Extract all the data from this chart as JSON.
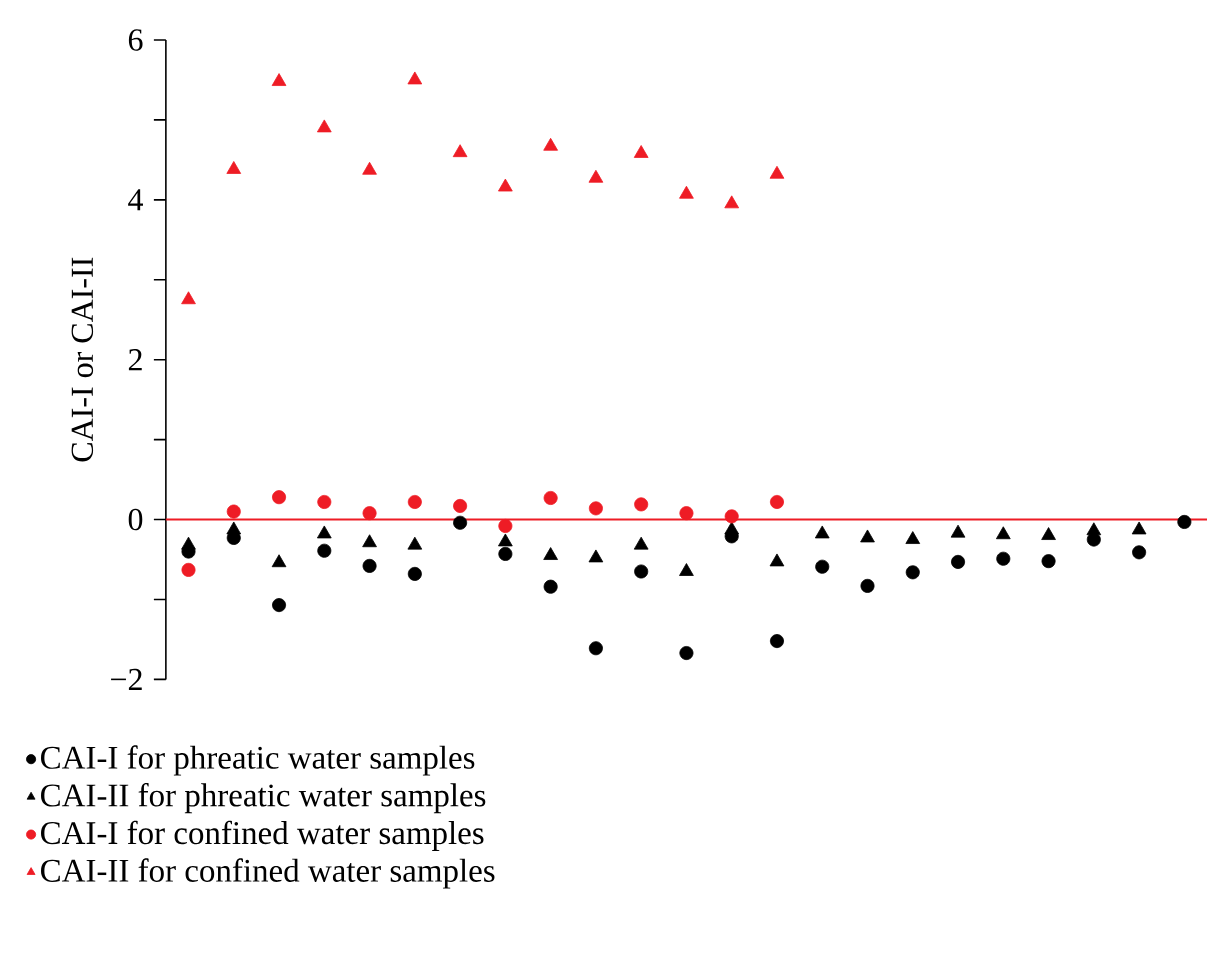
{
  "chart_data": {
    "type": "scatter",
    "ylabel": "CAI-I or CAI-II",
    "categories": [
      null,
      null,
      null,
      null,
      null,
      null,
      null,
      null,
      null,
      null,
      null,
      null,
      null,
      null,
      null,
      null,
      null,
      null,
      null,
      null,
      null,
      null,
      null
    ],
    "ylim": [
      -2,
      6
    ],
    "yticks": [
      {
        "value": -2,
        "label": "−2"
      },
      {
        "value": -1,
        "label": null
      },
      0,
      {
        "value": 1,
        "label": null
      },
      2,
      {
        "value": 3,
        "label": null
      },
      4,
      {
        "value": 5,
        "label": null
      },
      6
    ],
    "ref_lines": [
      {
        "axis": "y",
        "value": 0,
        "color": "#ee1c25"
      }
    ],
    "legend": "bottom",
    "grid": false,
    "series": [
      {
        "name": "CAI-I for phreatic water samples",
        "color": "#000000",
        "marker": "circle",
        "values": [
          -0.4,
          -0.23,
          -1.07,
          -0.39,
          -0.58,
          -0.68,
          -0.04,
          -0.43,
          -0.84,
          -1.61,
          -0.65,
          -1.67,
          -0.21,
          -1.52,
          -0.59,
          -0.83,
          -0.66,
          -0.53,
          -0.49,
          -0.52,
          -0.25,
          -0.41,
          -0.03
        ]
      },
      {
        "name": "CAI-II for phreatic water samples",
        "color": "#000000",
        "marker": "triangle",
        "values": [
          -0.32,
          -0.13,
          -0.54,
          -0.18,
          -0.29,
          -0.32,
          null,
          -0.28,
          -0.45,
          -0.48,
          -0.32,
          -0.65,
          -0.13,
          -0.53,
          -0.18,
          -0.23,
          -0.25,
          -0.17,
          -0.19,
          -0.2,
          -0.14,
          -0.13,
          null
        ]
      },
      {
        "name": "CAI-I for confined water samples",
        "color": "#ee1c25",
        "marker": "circle",
        "values": [
          -0.63,
          0.1,
          0.28,
          0.22,
          0.08,
          0.22,
          0.17,
          -0.08,
          0.27,
          0.14,
          0.19,
          0.08,
          0.04,
          0.22,
          null,
          null,
          null,
          null,
          null,
          null,
          null,
          null,
          null
        ]
      },
      {
        "name": "CAI-II for confined water samples",
        "color": "#ee1c25",
        "marker": "triangle",
        "values": [
          2.75,
          4.38,
          5.48,
          4.9,
          4.37,
          5.5,
          4.59,
          4.16,
          4.67,
          4.27,
          4.58,
          4.07,
          3.95,
          4.32,
          null,
          null,
          null,
          null,
          null,
          null,
          null,
          null,
          null
        ]
      }
    ]
  }
}
